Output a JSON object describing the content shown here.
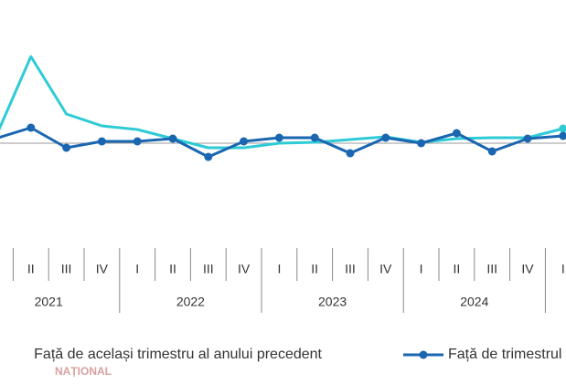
{
  "chart_data": {
    "type": "line",
    "categories": [
      "I",
      "II",
      "III",
      "IV",
      "I",
      "II",
      "III",
      "IV",
      "I",
      "II",
      "III",
      "IV",
      "I",
      "II",
      "III",
      "IV",
      "I"
    ],
    "groups": [
      "2021",
      "2022",
      "2023",
      "2024"
    ],
    "series": [
      {
        "name": "Față de același trimestru al anului precedent",
        "color": "#2ecbd6",
        "values": [
          0.6,
          9.5,
          3.2,
          1.9,
          1.5,
          0.5,
          -0.5,
          -0.5,
          0,
          0.1,
          0.4,
          0.7,
          0.1,
          0.5,
          0.6,
          0.6,
          1.6
        ]
      },
      {
        "name": "Față de trimestrul precedent",
        "color": "#1a66b0",
        "values": [
          0.5,
          1.7,
          -0.5,
          0.2,
          0.2,
          0.5,
          -1.5,
          0.2,
          0.6,
          0.6,
          -1.1,
          0.6,
          0,
          1.1,
          -0.9,
          0.5,
          0.8
        ]
      }
    ],
    "ylim": [
      -10,
      15
    ],
    "watermark": "NAȚIONAL"
  }
}
